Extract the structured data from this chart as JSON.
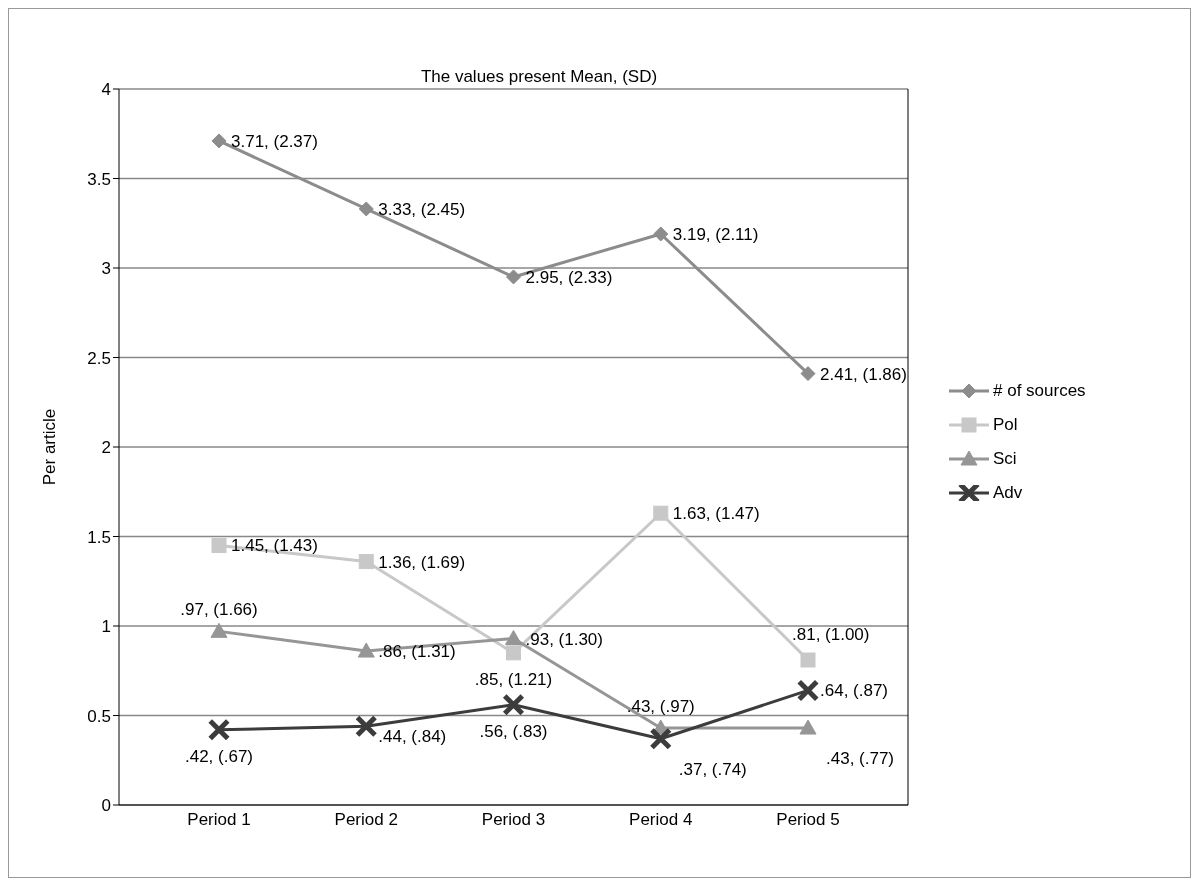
{
  "chart_data": {
    "type": "line",
    "title": "The values present Mean, (SD)",
    "ylabel": "Per article",
    "categories": [
      "Period 1",
      "Period 2",
      "Period 3",
      "Period 4",
      "Period 5"
    ],
    "series": [
      {
        "name": "# of sources",
        "color": "#8c8c8c",
        "marker": "diamond",
        "values": [
          3.71,
          3.33,
          2.95,
          3.19,
          2.41
        ],
        "value_labels": [
          "3.71, (2.37)",
          "3.33, (2.45)",
          "2.95, (2.33)",
          "3.19, (2.11)",
          "2.41, (1.86)"
        ]
      },
      {
        "name": "Pol",
        "color": "#c8c8c8",
        "marker": "square",
        "values": [
          1.45,
          1.36,
          0.85,
          1.63,
          0.81
        ],
        "value_labels": [
          "1.45, (1.43)",
          "1.36, (1.69)",
          ".85, (1.21)",
          "1.63, (1.47)",
          ".81, (1.00)"
        ]
      },
      {
        "name": "Sci",
        "color": "#969696",
        "marker": "triangle",
        "values": [
          0.97,
          0.86,
          0.93,
          0.43,
          0.43
        ],
        "value_labels": [
          ".97, (1.66)",
          ".86, (1.31)",
          ".93, (1.30)",
          ".43, (.97)",
          ".43, (.77)"
        ]
      },
      {
        "name": "Adv",
        "color": "#3c3c3c",
        "marker": "cross",
        "values": [
          0.42,
          0.44,
          0.56,
          0.37,
          0.64
        ],
        "value_labels": [
          ".42, (.67)",
          ".44, (.84)",
          ".56, (.83)",
          ".37, (.74)",
          ".64, (.87)"
        ]
      }
    ],
    "ylim": [
      0,
      4
    ],
    "yticks": [
      0,
      0.5,
      1,
      1.5,
      2,
      2.5,
      3,
      3.5,
      4
    ],
    "grid": "y",
    "legend": "right",
    "line_style": "solid"
  }
}
